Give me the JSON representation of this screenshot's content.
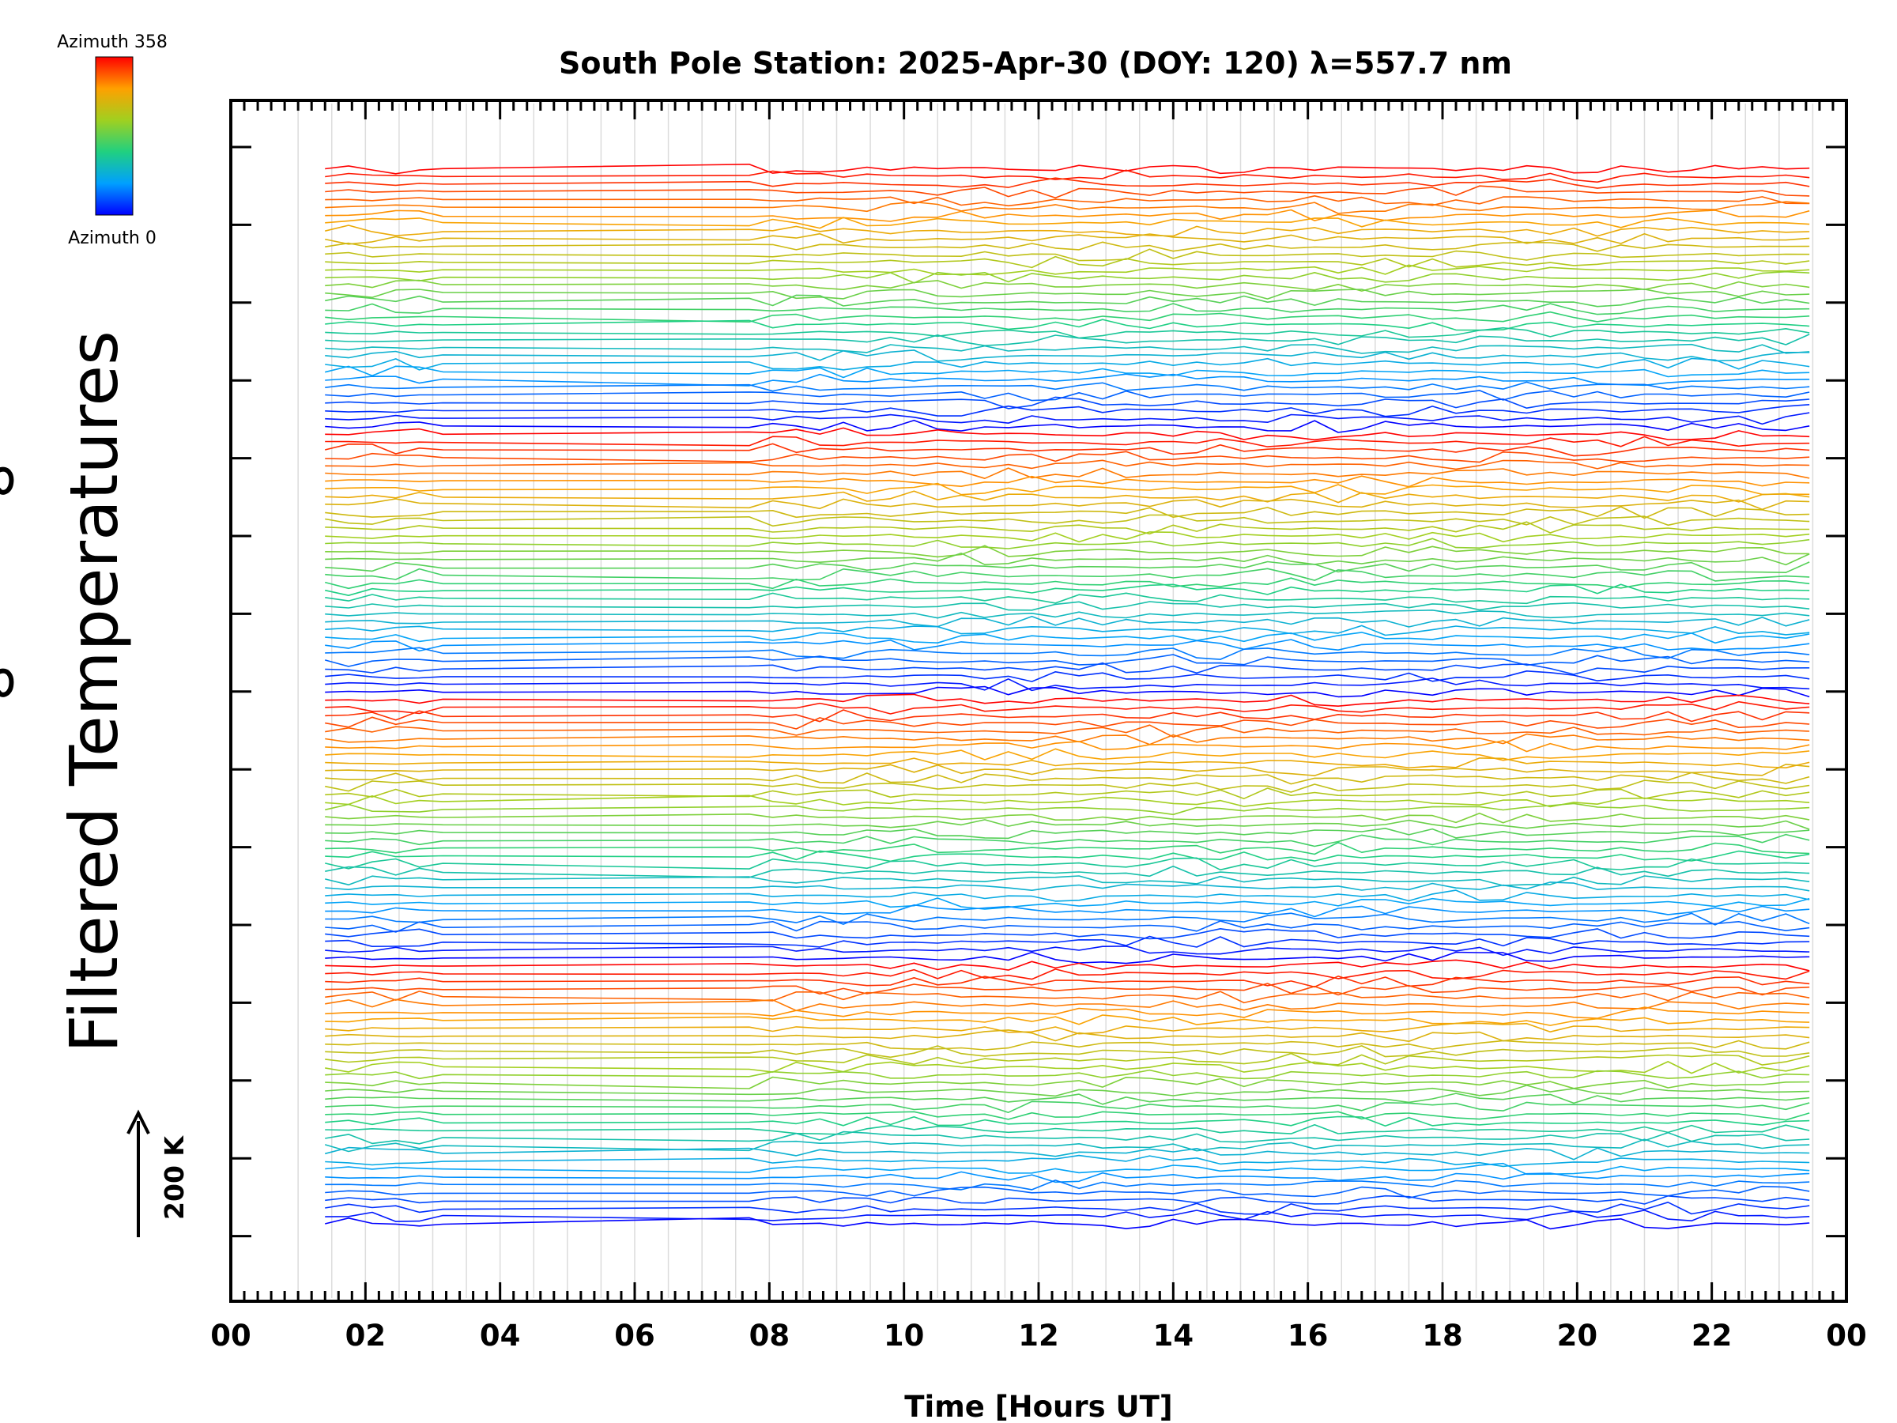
{
  "chart_data": {
    "type": "line",
    "title": "South Pole Station: 2025-Apr-30 (DOY: 120) λ=557.7 nm",
    "xlabel": "Time [Hours UT]",
    "ylabel": "Filtered Temperatures",
    "xlim": [
      0,
      24
    ],
    "x_tick_labels": [
      "00",
      "02",
      "04",
      "06",
      "08",
      "10",
      "12",
      "14",
      "16",
      "18",
      "20",
      "22",
      "00"
    ],
    "legend": {
      "colorbar_top_label": "Azimuth 358",
      "colorbar_bottom_label": "Azimuth 0",
      "azimuth_range": [
        0,
        358
      ]
    },
    "scale_bar": {
      "label": "200 K"
    },
    "stacked_traces": {
      "count": 136,
      "approx_baseline_spacing_K": 20,
      "time_start_hour": 1.4,
      "time_end_hour": 23.7,
      "sample_step_hours": 0.35,
      "data_gap_hours": [
        3.2,
        7.5
      ],
      "azimuth_cycle_length": 34,
      "active_window_hours": [
        1.5,
        3.0
      ],
      "noise_amplitude_K_quiet": 3,
      "noise_amplitude_K_active": 16
    }
  }
}
